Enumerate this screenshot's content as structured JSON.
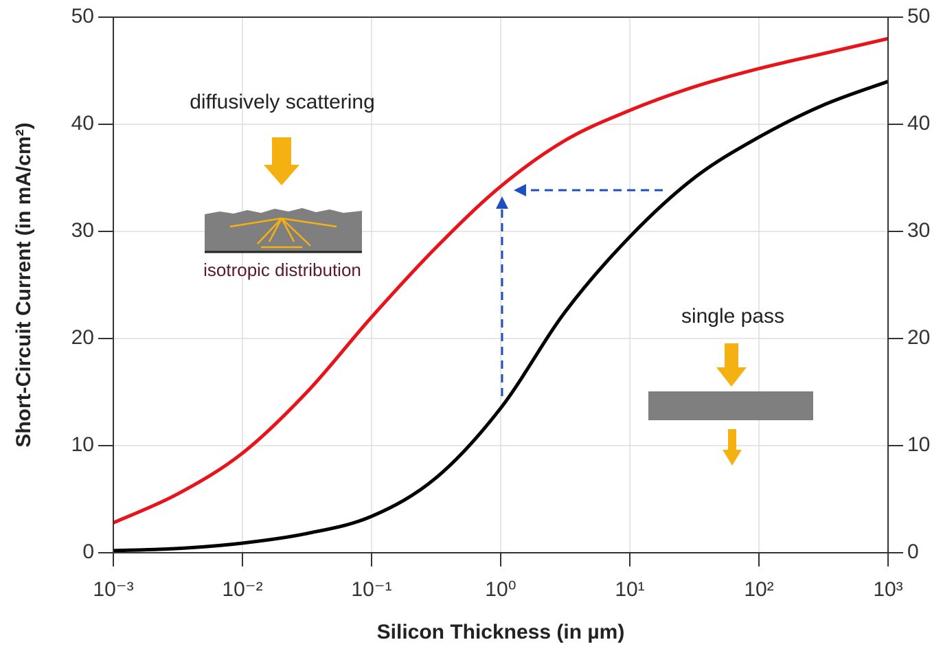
{
  "chart_data": {
    "type": "line",
    "xlabel": "Silicon Thickness (in µm)",
    "ylabel": "Short-Circuit Current (in mA/cm²)",
    "annotations": [
      "diffusively scattering",
      "isotropic distribution",
      "single pass"
    ],
    "xscale": "log",
    "x": [
      0.001,
      0.00316,
      0.01,
      0.0316,
      0.1,
      0.316,
      1,
      3.16,
      10,
      31.6,
      100,
      316,
      1000
    ],
    "series": [
      {
        "color": "#e8141b",
        "values": [
          2.8,
          5.5,
          9.3,
          15,
          22,
          28.5,
          34.2,
          38.5,
          41.3,
          43.5,
          45.2,
          46.6,
          48
        ]
      },
      {
        "color": "#000000",
        "values": [
          0.2,
          0.4,
          0.9,
          1.8,
          3.4,
          7,
          13.5,
          22.5,
          29.5,
          35,
          38.8,
          41.8,
          44
        ]
      }
    ],
    "xlim": [
      0.001,
      1000
    ],
    "xticks": [
      {
        "value": 0.001,
        "label": "10⁻³"
      },
      {
        "value": 0.01,
        "label": "10⁻²"
      },
      {
        "value": 0.1,
        "label": "10⁻¹"
      },
      {
        "value": 1,
        "label": "10⁰"
      },
      {
        "value": 10,
        "label": "10¹"
      },
      {
        "value": 100,
        "label": "10²"
      },
      {
        "value": 1000,
        "label": "10³"
      }
    ],
    "ylim": [
      0,
      50
    ],
    "yticks": [
      0,
      10,
      20,
      30,
      40,
      50
    ],
    "y2lim": [
      0,
      50
    ],
    "y2ticks": [
      0,
      10,
      20,
      30,
      40,
      50
    ],
    "grid": true
  }
}
